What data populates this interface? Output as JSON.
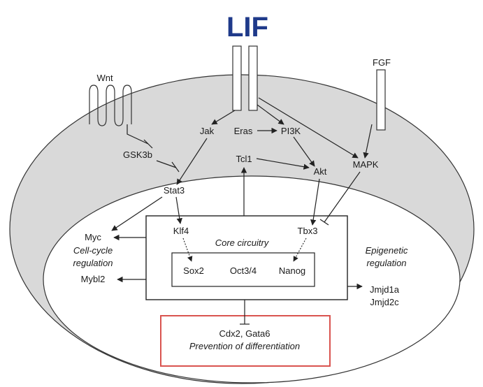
{
  "title": "LIF",
  "colors": {
    "title": "#1f3a8a",
    "outer_cell": "#d9d9d9",
    "inner_cell": "#ffffff",
    "stroke": "#222222",
    "highlight_box": "#d9534f"
  },
  "receptors": {
    "wnt": "Wnt",
    "fgf": "FGF"
  },
  "nodes": {
    "jak": "Jak",
    "eras": "Eras",
    "pi3k": "PI3K",
    "gsk3b": "GSK3b",
    "tcl1": "Tcl1",
    "akt": "Akt",
    "mapk": "MAPK",
    "stat3": "Stat3",
    "klf4": "Klf4",
    "tbx3": "Tbx3",
    "myc": "Myc",
    "mybl2": "Mybl2",
    "sox2": "Sox2",
    "oct34": "Oct3/4",
    "nanog": "Nanog",
    "jmjd1a": "Jmjd1a",
    "jmjd2c": "Jmjd2c"
  },
  "labels": {
    "core_circuitry": "Core circuitry",
    "cell_cycle_line1": "Cell-cycle",
    "cell_cycle_line2": "regulation",
    "epigenetic_line1": "Epigenetic",
    "epigenetic_line2": "regulation",
    "outcome_genes": "Cdx2, Gata6",
    "outcome_text": "Prevention of differentiation"
  }
}
